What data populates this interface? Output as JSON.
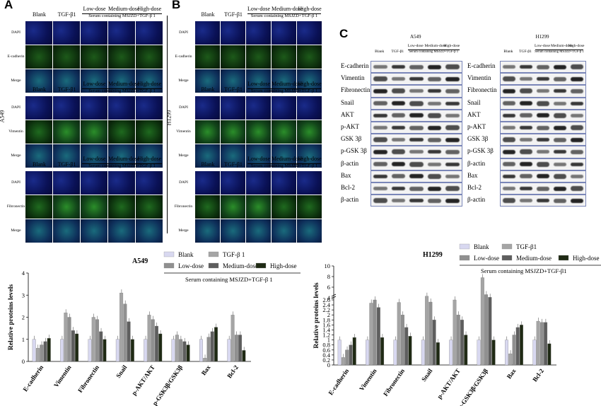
{
  "panel_letters": {
    "a": "A",
    "b": "B",
    "c": "C"
  },
  "col_headers": {
    "blank": "Blank",
    "tgf": "TGF-β1",
    "low": "Low-dose",
    "medium": "Medium-dose",
    "high": "High-dose",
    "serum": "Serum containing MSJZD+TGF-β 1"
  },
  "row_labels": {
    "dapi": "DAPI",
    "ecad": "E-cadherin",
    "vim": "Vimentin",
    "fib": "Fibronectin",
    "merge": "Merge"
  },
  "side_labels": {
    "a549": "A549",
    "h1299": "H1299"
  },
  "western": {
    "a549_title": "A549",
    "h1299_title": "H1299",
    "lanes": [
      "Blank",
      "TGF-β1",
      "Low-dose",
      "Medium-dose",
      "High-dose"
    ],
    "serum": "Serum containing MSJZD+TGF-β 1",
    "proteins": [
      "E-cadherin",
      "Vimentin",
      "Fibronectin",
      "Snail",
      "AKT",
      "p-AKT",
      "GSK 3β",
      "p-GSK 3β",
      "β-actin",
      "Bax",
      "Bcl-2",
      "β-actin"
    ]
  },
  "colors": {
    "blank": "#d8d8f0",
    "tgf": "#a5a5a5",
    "low": "#909090",
    "medium": "#5e5e5e",
    "high": "#1f2a14"
  },
  "chart_data": [
    {
      "type": "bar",
      "title": "A549",
      "ylabel": "Relative proteins levels",
      "ylim": [
        0,
        4
      ],
      "legend": [
        "Blank",
        "TGF-β 1",
        "Low-dose",
        "Medium-dose",
        "High-dose"
      ],
      "legend_note": "Serum containing MSJZD+TGF-β 1",
      "categories": [
        "E-cadherin",
        "Vimentin",
        "Fibronectin",
        "Snail",
        "p-AKT/AKT",
        "p-GSK3β/GSK3β",
        "Bax",
        "Bcl-2"
      ],
      "series": [
        {
          "name": "Blank",
          "values": [
            1.0,
            1.0,
            1.0,
            1.0,
            1.0,
            1.0,
            1.0,
            1.0
          ]
        },
        {
          "name": "TGF-β 1",
          "values": [
            0.6,
            2.2,
            2.0,
            3.1,
            2.1,
            1.2,
            0.15,
            2.1
          ]
        },
        {
          "name": "Low-dose",
          "values": [
            0.75,
            2.0,
            1.9,
            2.6,
            1.9,
            1.0,
            1.1,
            1.2
          ]
        },
        {
          "name": "Medium-dose",
          "values": [
            0.9,
            1.4,
            1.35,
            1.8,
            1.6,
            0.9,
            1.35,
            1.2
          ]
        },
        {
          "name": "High-dose",
          "values": [
            1.05,
            1.25,
            1.0,
            1.0,
            1.25,
            0.75,
            1.55,
            0.5
          ]
        }
      ]
    },
    {
      "type": "bar",
      "title": "H1299",
      "ylabel": "Relative proteins levels",
      "ylim": [
        0,
        10
      ],
      "legend": [
        "Blank",
        "TGF-β1",
        "Low-dose",
        "Medium-dose",
        "High-dose"
      ],
      "legend_note": "Serum containing MSJZD+TGF-β1",
      "categories": [
        "E-cadherin",
        "Vimentin",
        "Fibronectin",
        "Snail",
        "p-AKT/AKT",
        "p-GSK3β/GSK3β",
        "Bax",
        "Bcl-2"
      ],
      "series": [
        {
          "name": "Blank",
          "values": [
            1.0,
            1.0,
            1.0,
            1.0,
            1.0,
            1.0,
            1.0,
            1.0
          ]
        },
        {
          "name": "TGF-β1",
          "values": [
            0.3,
            3.0,
            2.5,
            4.3,
            2.6,
            7.8,
            0.45,
            1.75
          ]
        },
        {
          "name": "Low-dose",
          "values": [
            0.6,
            2.6,
            2.0,
            3.2,
            2.0,
            4.6,
            1.2,
            1.7
          ]
        },
        {
          "name": "Medium-dose",
          "values": [
            0.8,
            2.3,
            1.5,
            1.8,
            1.8,
            4.1,
            1.5,
            1.7
          ]
        },
        {
          "name": "High-dose",
          "values": [
            1.1,
            1.1,
            1.15,
            0.9,
            1.2,
            1.0,
            1.6,
            0.85
          ]
        }
      ]
    }
  ]
}
